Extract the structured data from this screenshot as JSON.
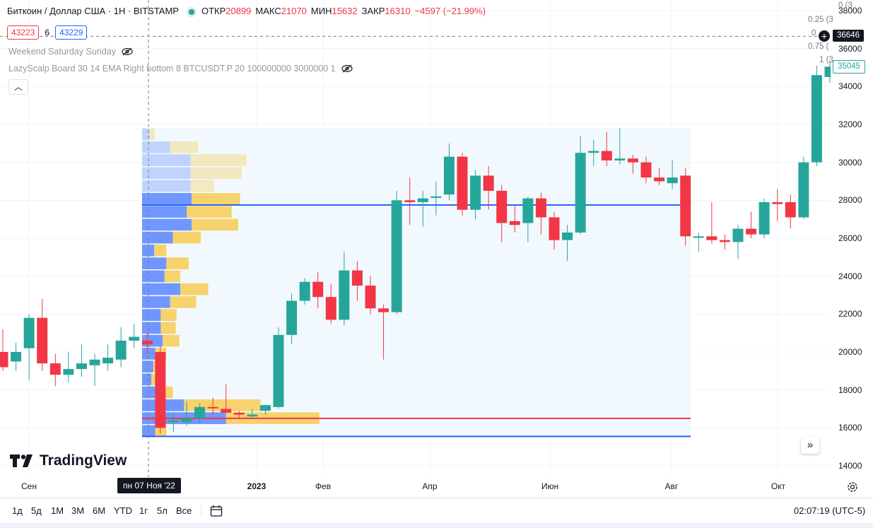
{
  "legend": {
    "symbol": "Биткоин / Доллар США · 1Н · BITSTAMP",
    "open_label": "ОТКР",
    "open_value": "20899",
    "high_label": "МАКС",
    "high_value": "21070",
    "low_label": "МИН",
    "low_value": "15632",
    "close_label": "ЗАКР",
    "close_value": "16310",
    "change": "−4597 (−21.99%)"
  },
  "price_boxes": {
    "sell": "43223",
    "spread": "6",
    "buy": "43229"
  },
  "indicators": [
    "Weekend Saturday Sunday",
    "LazyScalp Board 30 14 EMA Right bottom 8 BTCUSDT.P 20 100000000 3000000 1"
  ],
  "logo": "TradingView",
  "fib_labels": [
    "0 (3",
    "0.25 (3",
    "0",
    "0.75 (",
    "1 (3"
  ],
  "price_scale": {
    "ticks": [
      "38000",
      "36000",
      "34000",
      "32000",
      "30000",
      "28000",
      "26000",
      "24000",
      "22000",
      "20000",
      "18000",
      "16000",
      "14000"
    ],
    "crosshair_price": "36646",
    "last_price": "35045"
  },
  "time_axis": {
    "ticks": [
      "Сен",
      "2023",
      "Фев",
      "Апр",
      "Июн",
      "Авг",
      "Окт"
    ],
    "crosshair_date": "пн 07 Ноя '22"
  },
  "ranges": [
    "1д",
    "5д",
    "1М",
    "3М",
    "6М",
    "YTD",
    "1г",
    "5л",
    "Все"
  ],
  "clock": "02:07:19 (UTC-5)",
  "colors": {
    "up": "#26a69a",
    "down": "#f23645",
    "vp_blue": "#2962ff",
    "vp_yellow": "#f7c948",
    "box": "#e3f2fd"
  },
  "chart_data": {
    "type": "candlestick",
    "yrange": [
      14000,
      38000
    ],
    "candles": [
      {
        "o": 20000,
        "h": 21200,
        "l": 19000,
        "c": 19200
      },
      {
        "o": 19500,
        "h": 20500,
        "l": 19000,
        "c": 20000
      },
      {
        "o": 20200,
        "h": 22000,
        "l": 18500,
        "c": 21800
      },
      {
        "o": 21800,
        "h": 22800,
        "l": 19000,
        "c": 19400
      },
      {
        "o": 19400,
        "h": 19900,
        "l": 18200,
        "c": 18800
      },
      {
        "o": 18800,
        "h": 20000,
        "l": 18400,
        "c": 19100
      },
      {
        "o": 19100,
        "h": 20400,
        "l": 18700,
        "c": 19400
      },
      {
        "o": 19300,
        "h": 19900,
        "l": 18200,
        "c": 19600
      },
      {
        "o": 19400,
        "h": 20400,
        "l": 19000,
        "c": 19700
      },
      {
        "o": 19600,
        "h": 21300,
        "l": 19200,
        "c": 20600
      },
      {
        "o": 20600,
        "h": 21500,
        "l": 20200,
        "c": 20800
      },
      {
        "o": 20600,
        "h": 21050,
        "l": 19900,
        "c": 20400
      },
      {
        "o": 20000,
        "h": 20300,
        "l": 15700,
        "c": 16000
      },
      {
        "o": 16300,
        "h": 16800,
        "l": 15800,
        "c": 16400
      },
      {
        "o": 16300,
        "h": 17400,
        "l": 16100,
        "c": 16500
      },
      {
        "o": 16500,
        "h": 17300,
        "l": 16200,
        "c": 17100
      },
      {
        "o": 17100,
        "h": 17600,
        "l": 16700,
        "c": 17050
      },
      {
        "o": 17000,
        "h": 18300,
        "l": 16800,
        "c": 16800
      },
      {
        "o": 16800,
        "h": 16900,
        "l": 16500,
        "c": 16700
      },
      {
        "o": 16600,
        "h": 17000,
        "l": 16500,
        "c": 16700
      },
      {
        "o": 16900,
        "h": 17200,
        "l": 16700,
        "c": 17200
      },
      {
        "o": 17100,
        "h": 21300,
        "l": 17000,
        "c": 20900
      },
      {
        "o": 20900,
        "h": 23100,
        "l": 20400,
        "c": 22700
      },
      {
        "o": 22700,
        "h": 23900,
        "l": 22500,
        "c": 23700
      },
      {
        "o": 23700,
        "h": 24200,
        "l": 22300,
        "c": 22900
      },
      {
        "o": 22900,
        "h": 23600,
        "l": 21500,
        "c": 21700
      },
      {
        "o": 21700,
        "h": 25300,
        "l": 21400,
        "c": 24300
      },
      {
        "o": 24300,
        "h": 24800,
        "l": 22700,
        "c": 23500
      },
      {
        "o": 23500,
        "h": 24000,
        "l": 22000,
        "c": 22300
      },
      {
        "o": 22300,
        "h": 22500,
        "l": 19600,
        "c": 22100
      },
      {
        "o": 22100,
        "h": 28500,
        "l": 22000,
        "c": 28000
      },
      {
        "o": 28000,
        "h": 29200,
        "l": 26700,
        "c": 27900
      },
      {
        "o": 27900,
        "h": 28500,
        "l": 26600,
        "c": 28100
      },
      {
        "o": 28200,
        "h": 29000,
        "l": 27200,
        "c": 28200
      },
      {
        "o": 28300,
        "h": 31000,
        "l": 28000,
        "c": 30300
      },
      {
        "o": 30300,
        "h": 30500,
        "l": 27200,
        "c": 27500
      },
      {
        "o": 27500,
        "h": 29600,
        "l": 27000,
        "c": 29300
      },
      {
        "o": 29300,
        "h": 29800,
        "l": 27500,
        "c": 28500
      },
      {
        "o": 28500,
        "h": 28800,
        "l": 25800,
        "c": 26800
      },
      {
        "o": 26900,
        "h": 27700,
        "l": 26300,
        "c": 26700
      },
      {
        "o": 26800,
        "h": 28200,
        "l": 25800,
        "c": 28100
      },
      {
        "o": 28100,
        "h": 28400,
        "l": 26200,
        "c": 27100
      },
      {
        "o": 27100,
        "h": 27400,
        "l": 25400,
        "c": 25900
      },
      {
        "o": 25900,
        "h": 26700,
        "l": 24800,
        "c": 26300
      },
      {
        "o": 26300,
        "h": 31400,
        "l": 26200,
        "c": 30500
      },
      {
        "o": 30500,
        "h": 31200,
        "l": 29800,
        "c": 30600
      },
      {
        "o": 30600,
        "h": 31600,
        "l": 29800,
        "c": 30100
      },
      {
        "o": 30100,
        "h": 31800,
        "l": 29900,
        "c": 30200
      },
      {
        "o": 30200,
        "h": 30400,
        "l": 29400,
        "c": 30000
      },
      {
        "o": 30000,
        "h": 30300,
        "l": 28900,
        "c": 29200
      },
      {
        "o": 29200,
        "h": 29700,
        "l": 28800,
        "c": 29000
      },
      {
        "o": 28900,
        "h": 30100,
        "l": 28600,
        "c": 29200
      },
      {
        "o": 29300,
        "h": 29700,
        "l": 25600,
        "c": 26100
      },
      {
        "o": 26100,
        "h": 26300,
        "l": 25300,
        "c": 26100
      },
      {
        "o": 26100,
        "h": 27900,
        "l": 25700,
        "c": 25900
      },
      {
        "o": 25900,
        "h": 26200,
        "l": 25400,
        "c": 25800
      },
      {
        "o": 25800,
        "h": 26700,
        "l": 24900,
        "c": 26500
      },
      {
        "o": 26500,
        "h": 27400,
        "l": 26000,
        "c": 26200
      },
      {
        "o": 26200,
        "h": 28100,
        "l": 26000,
        "c": 27900
      },
      {
        "o": 27900,
        "h": 28600,
        "l": 26900,
        "c": 27800
      },
      {
        "o": 27900,
        "h": 28300,
        "l": 26500,
        "c": 27100
      },
      {
        "o": 27100,
        "h": 30300,
        "l": 27000,
        "c": 30000
      },
      {
        "o": 30000,
        "h": 35100,
        "l": 29800,
        "c": 34600
      },
      {
        "o": 34500,
        "h": 35300,
        "l": 34200,
        "c": 35045
      }
    ]
  }
}
